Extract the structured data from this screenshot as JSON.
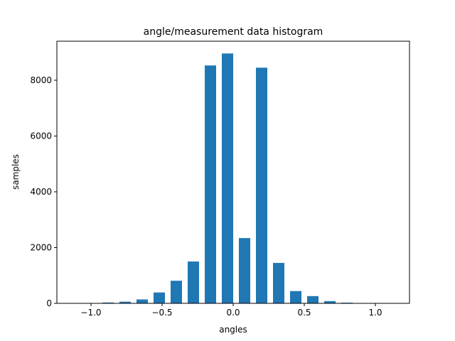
{
  "chart_data": {
    "type": "bar",
    "title": "angle/measurement data histogram",
    "xlabel": "angles",
    "ylabel": "samples",
    "x": [
      -1.0,
      -0.88,
      -0.76,
      -0.64,
      -0.52,
      -0.4,
      -0.28,
      -0.16,
      -0.04,
      0.08,
      0.2,
      0.32,
      0.44,
      0.56,
      0.68,
      0.8,
      0.92,
      1.04,
      1.16
    ],
    "values": [
      0,
      30,
      60,
      140,
      390,
      810,
      1500,
      8530,
      8960,
      2340,
      8450,
      1450,
      440,
      260,
      80,
      25,
      10,
      5,
      5
    ],
    "bar_width": 0.08,
    "xlim": [
      -1.24,
      1.24
    ],
    "ylim": [
      0,
      9400
    ],
    "xticks": [
      -1.0,
      -0.5,
      0.0,
      0.5,
      1.0
    ],
    "xtick_labels": [
      "−1.0",
      "−0.5",
      "0.0",
      "0.5",
      "1.0"
    ],
    "yticks": [
      0,
      2000,
      4000,
      6000,
      8000
    ],
    "ytick_labels": [
      "0",
      "2000",
      "4000",
      "6000",
      "8000"
    ],
    "bar_color": "#1f77b4",
    "grid": false,
    "legend": false
  }
}
